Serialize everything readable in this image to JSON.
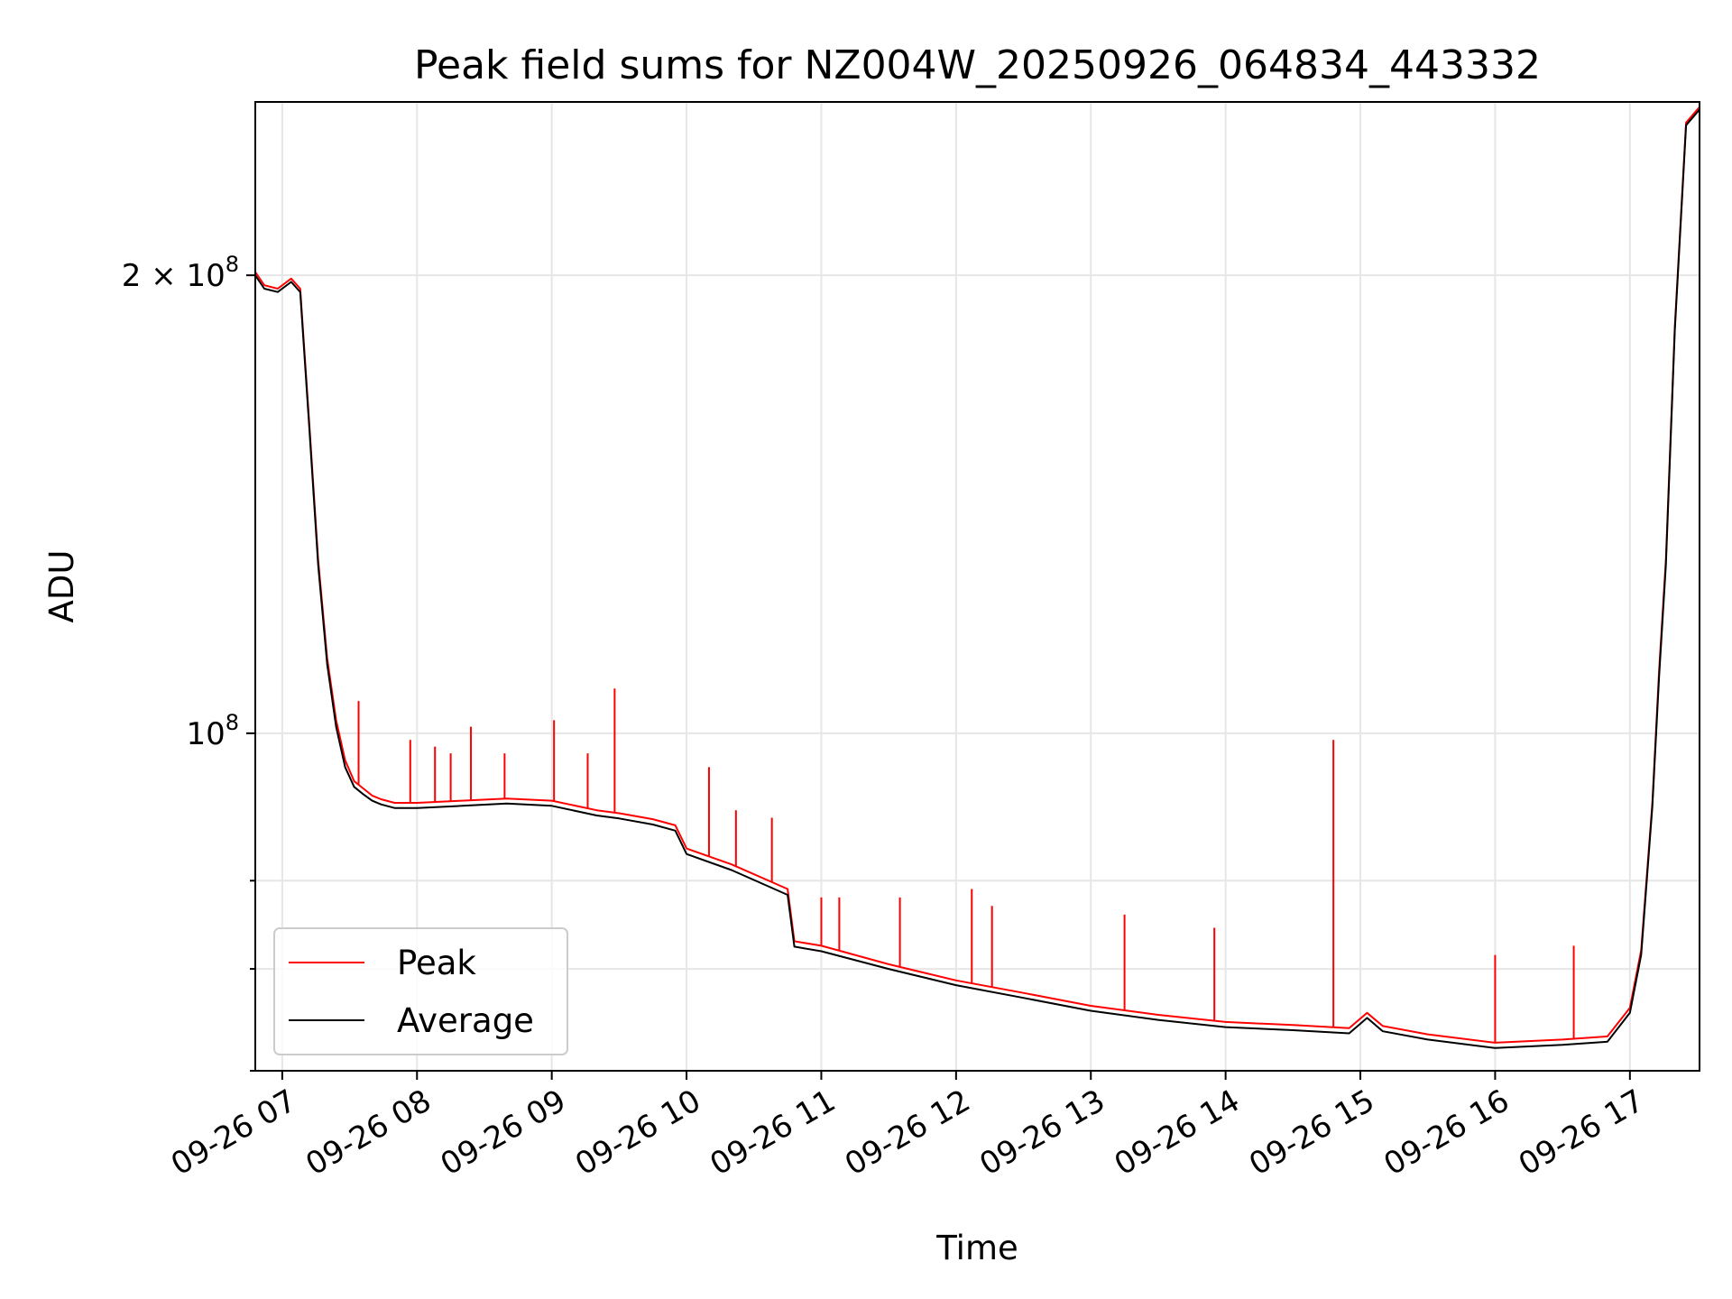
{
  "chart_data": {
    "type": "line",
    "title": "Peak field sums for NZ004W_20250926_064834_443332",
    "xlabel": "Time",
    "ylabel": "ADU",
    "yscale": "log",
    "grid": true,
    "legend_position": "lower-left",
    "xlim": [
      "2025-09-26 06:48",
      "2025-09-26 17:31"
    ],
    "ylim": [
      60000000,
      260000000
    ],
    "x_ticks": [
      "09-26 07",
      "09-26 08",
      "09-26 09",
      "09-26 10",
      "09-26 11",
      "09-26 12",
      "09-26 13",
      "09-26 14",
      "09-26 15",
      "09-26 16",
      "09-26 17"
    ],
    "y_ticks": [
      {
        "value": 200000000,
        "label_main": "2 × 10",
        "label_exp": "8"
      },
      {
        "value": 100000000,
        "label_main": "10",
        "label_exp": "8"
      }
    ],
    "y_minor_ticks": [
      60000000,
      70000000,
      80000000
    ],
    "series": [
      {
        "name": "Peak",
        "color": "#ff0000",
        "x": [
          "2025-09-26 06:48",
          "2025-09-26 06:52",
          "2025-09-26 06:58",
          "2025-09-26 07:04",
          "2025-09-26 07:08",
          "2025-09-26 07:12",
          "2025-09-26 07:16",
          "2025-09-26 07:20",
          "2025-09-26 07:24",
          "2025-09-26 07:28",
          "2025-09-26 07:32",
          "2025-09-26 07:36",
          "2025-09-26 07:40",
          "2025-09-26 07:44",
          "2025-09-26 07:50",
          "2025-09-26 08:00",
          "2025-09-26 08:20",
          "2025-09-26 08:40",
          "2025-09-26 09:00",
          "2025-09-26 09:20",
          "2025-09-26 09:30",
          "2025-09-26 09:45",
          "2025-09-26 09:55",
          "2025-09-26 10:00",
          "2025-09-26 10:20",
          "2025-09-26 10:45",
          "2025-09-26 10:48",
          "2025-09-26 11:00",
          "2025-09-26 11:30",
          "2025-09-26 12:00",
          "2025-09-26 12:30",
          "2025-09-26 13:00",
          "2025-09-26 13:30",
          "2025-09-26 14:00",
          "2025-09-26 14:30",
          "2025-09-26 14:55",
          "2025-09-26 15:03",
          "2025-09-26 15:10",
          "2025-09-26 15:30",
          "2025-09-26 16:00",
          "2025-09-26 16:30",
          "2025-09-26 16:50",
          "2025-09-26 17:00",
          "2025-09-26 17:05",
          "2025-09-26 17:10",
          "2025-09-26 17:13",
          "2025-09-26 17:16",
          "2025-09-26 17:20",
          "2025-09-26 17:25",
          "2025-09-26 17:31"
        ],
        "values": [
          201000000,
          197000000,
          196000000,
          199000000,
          196000000,
          160000000,
          130000000,
          112000000,
          102000000,
          96000000,
          93000000,
          92000000,
          91000000,
          90500000,
          90000000,
          90000000,
          90300000,
          90600000,
          90300000,
          89000000,
          88600000,
          87800000,
          87000000,
          84000000,
          82000000,
          79000000,
          73000000,
          72500000,
          70500000,
          68800000,
          67500000,
          66200000,
          65300000,
          64600000,
          64300000,
          64000000,
          65500000,
          64200000,
          63400000,
          62600000,
          62900000,
          63200000,
          66000000,
          72000000,
          90000000,
          110000000,
          130000000,
          185000000,
          252000000,
          258000000
        ],
        "spikes": [
          {
            "x": "2025-09-26 07:34",
            "value": 105000000
          },
          {
            "x": "2025-09-26 07:57",
            "value": 99000000
          },
          {
            "x": "2025-09-26 08:08",
            "value": 98000000
          },
          {
            "x": "2025-09-26 08:15",
            "value": 97000000
          },
          {
            "x": "2025-09-26 08:24",
            "value": 101000000
          },
          {
            "x": "2025-09-26 08:39",
            "value": 97000000
          },
          {
            "x": "2025-09-26 09:01",
            "value": 102000000
          },
          {
            "x": "2025-09-26 09:16",
            "value": 97000000
          },
          {
            "x": "2025-09-26 09:28",
            "value": 107000000
          },
          {
            "x": "2025-09-26 10:10",
            "value": 95000000
          },
          {
            "x": "2025-09-26 10:22",
            "value": 89000000
          },
          {
            "x": "2025-09-26 10:38",
            "value": 88000000
          },
          {
            "x": "2025-09-26 11:00",
            "value": 78000000
          },
          {
            "x": "2025-09-26 11:08",
            "value": 78000000
          },
          {
            "x": "2025-09-26 11:35",
            "value": 78000000
          },
          {
            "x": "2025-09-26 12:07",
            "value": 79000000
          },
          {
            "x": "2025-09-26 12:16",
            "value": 77000000
          },
          {
            "x": "2025-09-26 13:15",
            "value": 76000000
          },
          {
            "x": "2025-09-26 13:55",
            "value": 74500000
          },
          {
            "x": "2025-09-26 14:48",
            "value": 99000000
          },
          {
            "x": "2025-09-26 16:00",
            "value": 71500000
          },
          {
            "x": "2025-09-26 16:35",
            "value": 72500000
          }
        ]
      },
      {
        "name": "Average",
        "color": "#000000",
        "x": [
          "2025-09-26 06:48",
          "2025-09-26 06:52",
          "2025-09-26 06:58",
          "2025-09-26 07:04",
          "2025-09-26 07:08",
          "2025-09-26 07:12",
          "2025-09-26 07:16",
          "2025-09-26 07:20",
          "2025-09-26 07:24",
          "2025-09-26 07:28",
          "2025-09-26 07:32",
          "2025-09-26 07:36",
          "2025-09-26 07:40",
          "2025-09-26 07:44",
          "2025-09-26 07:50",
          "2025-09-26 08:00",
          "2025-09-26 08:20",
          "2025-09-26 08:40",
          "2025-09-26 09:00",
          "2025-09-26 09:20",
          "2025-09-26 09:30",
          "2025-09-26 09:45",
          "2025-09-26 09:55",
          "2025-09-26 10:00",
          "2025-09-26 10:20",
          "2025-09-26 10:45",
          "2025-09-26 10:48",
          "2025-09-26 11:00",
          "2025-09-26 11:30",
          "2025-09-26 12:00",
          "2025-09-26 12:30",
          "2025-09-26 13:00",
          "2025-09-26 13:30",
          "2025-09-26 14:00",
          "2025-09-26 14:30",
          "2025-09-26 14:55",
          "2025-09-26 15:03",
          "2025-09-26 15:10",
          "2025-09-26 15:30",
          "2025-09-26 16:00",
          "2025-09-26 16:30",
          "2025-09-26 16:50",
          "2025-09-26 17:00",
          "2025-09-26 17:05",
          "2025-09-26 17:10",
          "2025-09-26 17:13",
          "2025-09-26 17:16",
          "2025-09-26 17:20",
          "2025-09-26 17:25",
          "2025-09-26 17:31"
        ],
        "values": [
          200000000,
          196000000,
          195000000,
          198000000,
          195000000,
          159000000,
          129000000,
          111000000,
          101000000,
          95000000,
          92200000,
          91200000,
          90300000,
          89800000,
          89300000,
          89300000,
          89600000,
          89900000,
          89600000,
          88300000,
          87900000,
          87100000,
          86300000,
          83300000,
          81300000,
          78300000,
          72400000,
          71900000,
          70000000,
          68300000,
          67000000,
          65700000,
          64800000,
          64100000,
          63800000,
          63500000,
          65000000,
          63700000,
          62900000,
          62100000,
          62400000,
          62700000,
          65500000,
          71500000,
          89500000,
          109000000,
          129000000,
          184000000,
          251000000,
          257000000
        ]
      }
    ]
  }
}
